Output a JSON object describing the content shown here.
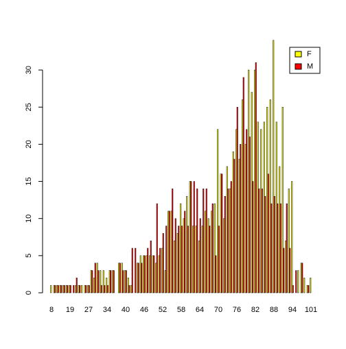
{
  "chart_data": {
    "type": "bar",
    "categories": [
      "8",
      null,
      null,
      null,
      null,
      null,
      "19",
      null,
      null,
      null,
      null,
      null,
      "27",
      null,
      null,
      null,
      null,
      null,
      "34",
      null,
      null,
      null,
      null,
      null,
      "40",
      null,
      null,
      null,
      null,
      null,
      "46",
      null,
      null,
      null,
      null,
      null,
      "52",
      null,
      null,
      null,
      null,
      null,
      "58",
      null,
      null,
      null,
      null,
      null,
      "64",
      null,
      null,
      null,
      null,
      null,
      "70",
      null,
      null,
      null,
      null,
      null,
      "76",
      null,
      null,
      null,
      null,
      null,
      "82",
      null,
      null,
      null,
      null,
      null,
      "88",
      null,
      null,
      null,
      null,
      null,
      "94",
      null,
      null,
      null,
      null,
      null,
      "101"
    ],
    "series": [
      {
        "name": "F",
        "color": "#ffff00",
        "values": [
          1,
          1,
          1,
          1,
          1,
          1,
          1,
          0,
          1,
          1,
          1,
          1,
          1,
          3,
          2,
          4,
          3,
          3,
          2,
          3,
          3,
          0,
          4,
          4,
          3,
          2,
          1,
          0,
          4,
          5,
          5,
          5,
          5,
          5,
          4,
          5,
          6,
          3,
          11,
          11,
          7,
          8,
          12,
          10,
          13,
          15,
          9,
          9,
          7,
          9,
          11,
          10,
          11,
          12,
          22,
          16,
          10,
          17,
          14,
          19,
          22,
          18,
          26,
          20,
          30,
          27,
          30,
          23,
          22,
          23,
          25,
          26,
          34,
          23,
          17,
          25,
          7,
          14,
          15,
          0,
          3,
          4,
          2,
          1,
          2
        ]
      },
      {
        "name": "M",
        "color": "#ff0000",
        "values": [
          0,
          1,
          1,
          1,
          1,
          1,
          1,
          1,
          2,
          1,
          0,
          1,
          1,
          3,
          4,
          3,
          1,
          1,
          1,
          3,
          3,
          0,
          4,
          3,
          3,
          1,
          6,
          6,
          4,
          4,
          5,
          6,
          7,
          5,
          12,
          6,
          8,
          9,
          11,
          14,
          10,
          9,
          9,
          11,
          9,
          15,
          15,
          14,
          10,
          14,
          14,
          9,
          12,
          5,
          9,
          16,
          13,
          14,
          15,
          18,
          25,
          20,
          29,
          22,
          21,
          15,
          31,
          14,
          14,
          13,
          16,
          12,
          13,
          12,
          12,
          6,
          12,
          6,
          1,
          3,
          0,
          4,
          0,
          1,
          0
        ]
      }
    ],
    "ylim": [
      0,
      35
    ],
    "yticks": [
      0,
      5,
      10,
      15,
      20,
      25,
      30
    ],
    "legend": "top-right"
  }
}
